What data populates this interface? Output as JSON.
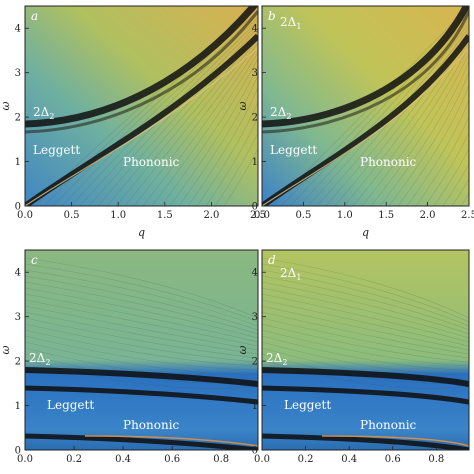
{
  "figure": {
    "panels": [
      {
        "letter": "a",
        "x_ticks": [
          "0.0",
          "0.5",
          "1.0",
          "1.5",
          "2.0",
          "2.5"
        ],
        "y_ticks": [
          "0",
          "1",
          "2",
          "3",
          "4"
        ],
        "xlabel": "q",
        "ylabel": "ω",
        "labels": {
          "gap2": "2Δ",
          "gap2_sub": "2",
          "leggett": "Leggett",
          "phononic": "Phononic"
        }
      },
      {
        "letter": "b",
        "x_ticks": [
          "0.0",
          "0.5",
          "1.0",
          "1.5",
          "2.0",
          "2.5"
        ],
        "y_ticks": [
          "0",
          "1",
          "2",
          "3",
          "4"
        ],
        "xlabel": "q",
        "ylabel": "ω",
        "labels": {
          "gap1": "2Δ",
          "gap1_sub": "1",
          "gap2": "2Δ",
          "gap2_sub": "2",
          "leggett": "Leggett",
          "phononic": "Phononic"
        }
      },
      {
        "letter": "c",
        "x_ticks": [
          "0.0",
          "0.2",
          "0.4",
          "0.6",
          "0.8"
        ],
        "y_ticks": [
          "0",
          "1",
          "2",
          "3",
          "4"
        ],
        "xlabel": "",
        "ylabel": "ω",
        "labels": {
          "gap2": "2Δ",
          "gap2_sub": "2",
          "leggett": "Leggett",
          "phononic": "Phononic"
        }
      },
      {
        "letter": "d",
        "x_ticks": [
          "0.0",
          "0.2",
          "0.4",
          "0.6",
          "0.8"
        ],
        "y_ticks": [
          "0",
          "1",
          "2",
          "3",
          "4"
        ],
        "xlabel": "",
        "ylabel": "ω",
        "labels": {
          "gap1": "2Δ",
          "gap1_sub": "1",
          "gap2": "2Δ",
          "gap2_sub": "2",
          "leggett": "Leggett",
          "phononic": "Phononic"
        }
      }
    ]
  },
  "colors": {
    "yellow": "#e8c84a",
    "green": "#a8c060",
    "teal": "#4aa8a0",
    "blue": "#2a78c8",
    "dark": "#101010",
    "orange": "#e08030"
  }
}
